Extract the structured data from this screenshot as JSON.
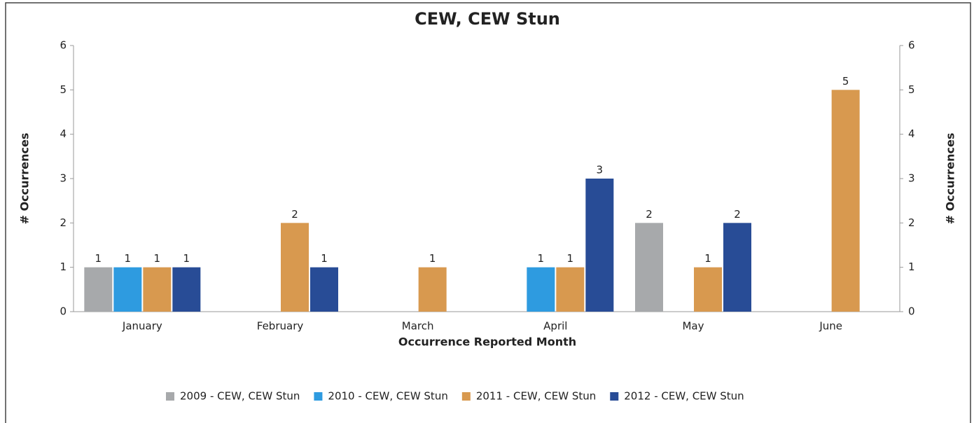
{
  "chart_data": {
    "type": "bar",
    "title": "CEW, CEW Stun",
    "x_label": "Occurrence Reported Month",
    "y_label": "# Occurrences",
    "y2_label": "# Occurrences",
    "categories": [
      "January",
      "February",
      "March",
      "April",
      "May",
      "June"
    ],
    "series": [
      {
        "name": "2009 - CEW, CEW Stun",
        "color": "#a7a9ab",
        "values": [
          1,
          null,
          null,
          null,
          2,
          null
        ]
      },
      {
        "name": "2010 - CEW, CEW Stun",
        "color": "#2e9be0",
        "values": [
          1,
          null,
          null,
          1,
          null,
          null
        ]
      },
      {
        "name": "2011 - CEW, CEW Stun",
        "color": "#d8994f",
        "values": [
          1,
          2,
          1,
          1,
          1,
          5
        ]
      },
      {
        "name": "2012 - CEW, CEW Stun",
        "color": "#284c96",
        "values": [
          1,
          1,
          null,
          3,
          2,
          null
        ]
      }
    ],
    "ylim": [
      0,
      6
    ],
    "yticks": [
      0,
      1,
      2,
      3,
      4,
      5,
      6
    ],
    "y2lim": [
      0,
      6
    ],
    "y2ticks": [
      0,
      1,
      2,
      3,
      4,
      5,
      6
    ],
    "grid": false,
    "legend": "bottom"
  }
}
